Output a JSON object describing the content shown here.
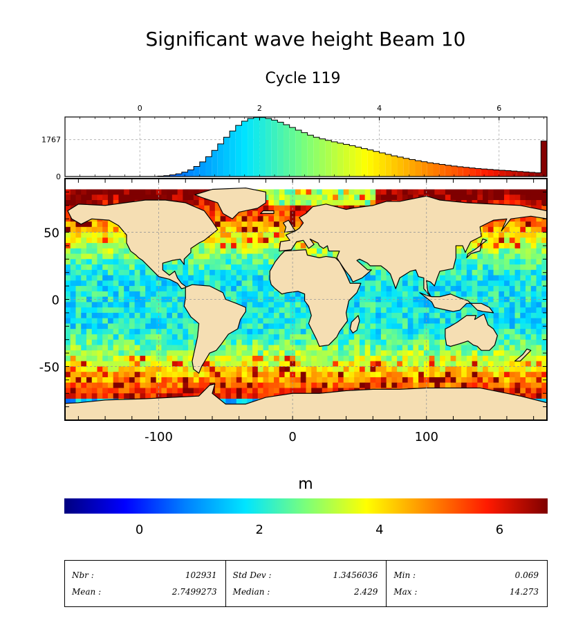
{
  "title": "Significant wave height Beam 10",
  "subtitle": "Cycle 119",
  "colorbar": {
    "unit": "m",
    "ticks": [
      0,
      2,
      4,
      6
    ],
    "range": [
      -1.25,
      6.8
    ],
    "colors": [
      "#00007f",
      "#0000ff",
      "#0080ff",
      "#00e5ff",
      "#7cff79",
      "#ffff00",
      "#ff8c00",
      "#ff1a00",
      "#7f0000"
    ]
  },
  "land_color": "#f5deb3",
  "chart_data": [
    {
      "type": "bar",
      "name": "histogram",
      "xlim": [
        -1.25,
        6.8
      ],
      "x_ticks": [
        0,
        2,
        4,
        6
      ],
      "y_ticks": [
        0,
        1767
      ],
      "ylim": [
        0,
        2850
      ],
      "bin_width": 0.1,
      "bin_starts": [
        0.3,
        0.4,
        0.5,
        0.6,
        0.7,
        0.8,
        0.9,
        1.0,
        1.1,
        1.2,
        1.3,
        1.4,
        1.5,
        1.6,
        1.7,
        1.8,
        1.9,
        2.0,
        2.1,
        2.2,
        2.3,
        2.4,
        2.5,
        2.6,
        2.7,
        2.8,
        2.9,
        3.0,
        3.1,
        3.2,
        3.3,
        3.4,
        3.5,
        3.6,
        3.7,
        3.8,
        3.9,
        4.0,
        4.1,
        4.2,
        4.3,
        4.4,
        4.5,
        4.6,
        4.7,
        4.8,
        4.9,
        5.0,
        5.1,
        5.2,
        5.3,
        5.4,
        5.5,
        5.6,
        5.7,
        5.8,
        5.9,
        6.0,
        6.1,
        6.2,
        6.3,
        6.4,
        6.5,
        6.6,
        6.7
      ],
      "values": [
        20,
        40,
        80,
        130,
        210,
        320,
        480,
        700,
        950,
        1250,
        1560,
        1880,
        2180,
        2450,
        2650,
        2780,
        2830,
        2830,
        2780,
        2700,
        2600,
        2480,
        2350,
        2220,
        2100,
        1980,
        1880,
        1800,
        1730,
        1660,
        1600,
        1540,
        1480,
        1410,
        1340,
        1270,
        1200,
        1130,
        1060,
        990,
        930,
        870,
        810,
        760,
        710,
        660,
        620,
        580,
        540,
        500,
        470,
        440,
        410,
        380,
        360,
        340,
        320,
        300,
        280,
        260,
        240,
        220,
        200,
        180,
        1700
      ]
    },
    {
      "type": "heatmap",
      "name": "map",
      "xlim": [
        -170,
        190
      ],
      "ylim": [
        -90,
        90
      ],
      "x_ticks": [
        -100,
        0,
        100
      ],
      "y_ticks": [
        -50,
        0,
        50
      ]
    }
  ],
  "stats": [
    {
      "label1": "Nbr :",
      "value1": "102931",
      "label2": "Mean :",
      "value2": "2.7499273"
    },
    {
      "label1": "Std Dev :",
      "value1": "1.3456036",
      "label2": "Median :",
      "value2": "2.429"
    },
    {
      "label1": "Min :",
      "value1": "0.069",
      "label2": "Max :",
      "value2": "14.273"
    }
  ]
}
